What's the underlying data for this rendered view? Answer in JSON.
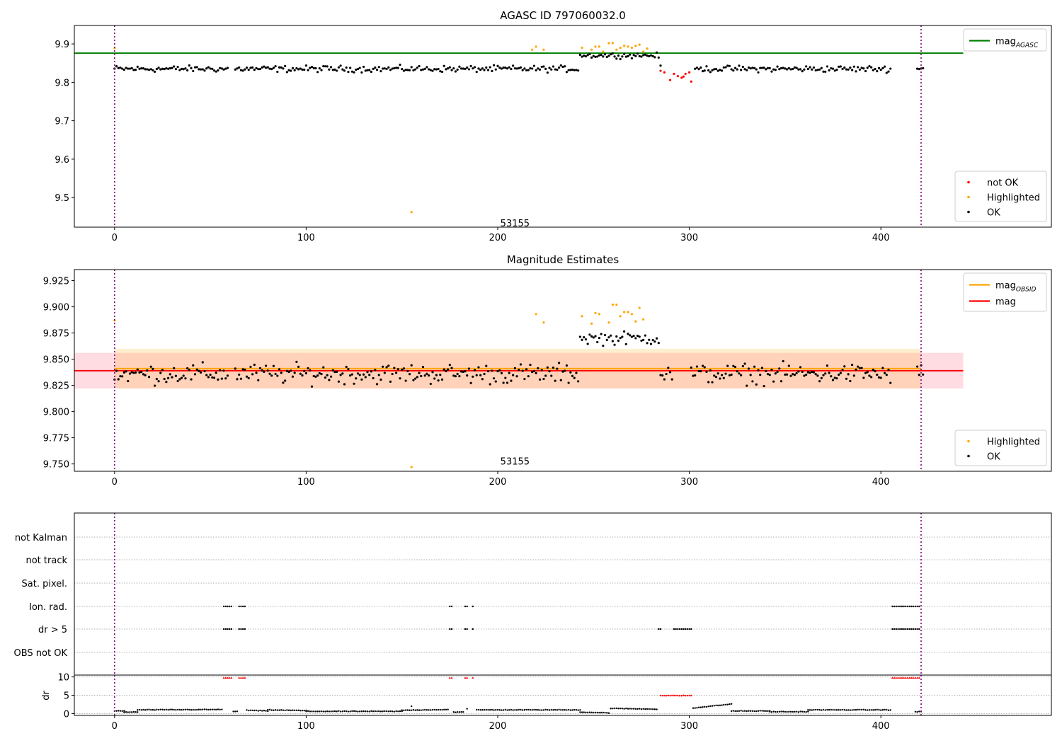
{
  "chart_data": [
    {
      "type": "scatter",
      "title": "AGASC ID 797060032.0",
      "xlim": [
        -21,
        489
      ],
      "ylim": [
        9.423,
        9.948
      ],
      "xticks": [
        0,
        100,
        200,
        300,
        400
      ],
      "yticks": [
        9.5,
        9.6,
        9.7,
        9.8,
        9.9
      ],
      "hlines": [
        {
          "name": "mag_AGASC",
          "y": 9.876,
          "x_range": [
            -21,
            443
          ],
          "color": "#008000"
        }
      ],
      "vlines": [
        0,
        421
      ],
      "annotation": {
        "text": "53155",
        "x": 209,
        "y": 9.432
      },
      "legends": {
        "upper": [
          {
            "label": "mag",
            "sub": "AGASC",
            "color": "#008000",
            "kind": "line"
          }
        ],
        "lower": [
          {
            "label": "not OK",
            "color": "#ff0000",
            "kind": "dot"
          },
          {
            "label": "Highlighted",
            "color": "#ffa500",
            "kind": "dot"
          },
          {
            "label": "OK",
            "color": "#000000",
            "kind": "dot"
          }
        ]
      },
      "series_ok": {
        "name": "OK",
        "x_range": [
          0,
          422
        ],
        "gaps": [
          [
            60,
            62
          ],
          [
            286,
            302
          ],
          [
            406,
            418
          ]
        ],
        "center": 9.835,
        "spread": 0.012
      },
      "series_ok_bump": {
        "x_range": [
          243,
          284
        ],
        "center": 9.87,
        "spread": 0.01
      },
      "series_not_ok": {
        "name": "not OK",
        "x": [
          285,
          287,
          290,
          292,
          294,
          296,
          297,
          298,
          300,
          301
        ],
        "y": [
          9.83,
          9.826,
          9.806,
          9.822,
          9.816,
          9.812,
          9.815,
          9.822,
          9.826,
          9.802
        ]
      },
      "series_highlighted": {
        "name": "Highlighted",
        "x": [
          0,
          218,
          220,
          224,
          244,
          249,
          251,
          253,
          255,
          258,
          260,
          262,
          264,
          266,
          268,
          270,
          272,
          274,
          276,
          278,
          155
        ],
        "y": [
          9.889,
          9.885,
          9.893,
          9.885,
          9.89,
          9.885,
          9.893,
          9.893,
          9.88,
          9.902,
          9.902,
          9.885,
          9.89,
          9.895,
          9.893,
          9.89,
          9.895,
          9.898,
          9.88,
          9.888,
          9.462
        ]
      }
    },
    {
      "type": "scatter",
      "title": "Magnitude Estimates",
      "xlim": [
        -21,
        489
      ],
      "ylim": [
        9.743,
        9.9355
      ],
      "xticks": [
        0,
        100,
        200,
        300,
        400
      ],
      "yticks": [
        9.75,
        9.775,
        9.8,
        9.825,
        9.85,
        9.875,
        9.9,
        9.925
      ],
      "ytick_labels": [
        "9.750",
        "9.775",
        "9.800",
        "9.825",
        "9.850",
        "9.875",
        "9.900",
        "9.925"
      ],
      "hlines": [
        {
          "name": "mag",
          "y": 9.839,
          "x_range": [
            -21,
            443
          ],
          "color": "#ff0000"
        },
        {
          "name": "mag_OBSID",
          "y": 9.841,
          "x_range": [
            0,
            421
          ],
          "color": "#ffa500"
        }
      ],
      "bands": [
        {
          "y": [
            9.822,
            9.856
          ],
          "x_range": [
            -21,
            443
          ],
          "color": "#ffc0cb",
          "opacity": 0.55
        },
        {
          "y": [
            9.822,
            9.86
          ],
          "x_range": [
            0,
            421
          ],
          "color": "#ffa500",
          "opacity": 0.18
        }
      ],
      "vlines": [
        0,
        421
      ],
      "annotation": {
        "text": "53155",
        "x": 209,
        "y": 9.752
      },
      "legends": {
        "upper": [
          {
            "label": "mag",
            "sub": "OBSID",
            "color": "#ffa500",
            "kind": "line"
          },
          {
            "label": "mag",
            "sub": "",
            "color": "#ff0000",
            "kind": "line"
          }
        ],
        "lower": [
          {
            "label": "Highlighted",
            "color": "#ffa500",
            "kind": "dot"
          },
          {
            "label": "OK",
            "color": "#000000",
            "kind": "dot"
          }
        ]
      },
      "series_ok": {
        "name": "OK",
        "x_range": [
          0,
          422
        ],
        "gaps": [
          [
            60,
            62
          ],
          [
            292,
            300
          ],
          [
            406,
            418
          ]
        ],
        "center": 9.836,
        "spread": 0.014
      },
      "series_ok_bump": {
        "x_range": [
          243,
          284
        ],
        "center": 9.87,
        "spread": 0.009
      },
      "series_highlighted": {
        "name": "Highlighted",
        "x": [
          0,
          220,
          224,
          244,
          249,
          251,
          253,
          258,
          260,
          262,
          264,
          266,
          268,
          270,
          272,
          274,
          276,
          155
        ],
        "y": [
          9.887,
          9.893,
          9.885,
          9.891,
          9.884,
          9.894,
          9.893,
          9.885,
          9.902,
          9.902,
          9.891,
          9.895,
          9.895,
          9.893,
          9.886,
          9.899,
          9.888,
          9.747
        ]
      }
    },
    {
      "type": "scatter",
      "title": "",
      "xlim": [
        -21,
        489
      ],
      "rows": [
        "not Kalman",
        "not track",
        "Sat. pixel.",
        "Ion. rad.",
        "dr > 5",
        "OBS not OK"
      ],
      "flag_ranges": {
        "Ion. rad.": [
          [
            57,
            61
          ],
          [
            65,
            68
          ],
          [
            175,
            176
          ],
          [
            183,
            184
          ],
          [
            187,
            187
          ],
          [
            406,
            420
          ]
        ],
        "dr > 5": [
          [
            57,
            61
          ],
          [
            65,
            68
          ],
          [
            175,
            176
          ],
          [
            183,
            184
          ],
          [
            187,
            187
          ],
          [
            284,
            285
          ],
          [
            292,
            301
          ],
          [
            406,
            420
          ]
        ]
      },
      "vlines": [
        0,
        421
      ]
    },
    {
      "type": "scatter",
      "title": "",
      "xlim": [
        -21,
        489
      ],
      "ylim": [
        -0.5,
        10.5
      ],
      "xticks": [
        0,
        100,
        200,
        300,
        400
      ],
      "yticks": [
        0,
        5,
        10
      ],
      "ylabel": "dr",
      "vlines": [
        0,
        421
      ],
      "red_ranges": [
        [
          57,
          61
        ],
        [
          65,
          68
        ],
        [
          175,
          176
        ],
        [
          183,
          184
        ],
        [
          187,
          187
        ],
        [
          406,
          420
        ]
      ],
      "red_mid_range": [
        285,
        301
      ],
      "black_segments": [
        {
          "x": [
            0,
            5
          ],
          "y": [
            0.7,
            0.7
          ]
        },
        {
          "x": [
            5,
            12
          ],
          "y": [
            0.4,
            0.4
          ]
        },
        {
          "x": [
            12,
            56
          ],
          "y": [
            1.0,
            1.1
          ]
        },
        {
          "x": [
            62,
            64
          ],
          "y": [
            0.6,
            0.6
          ]
        },
        {
          "x": [
            69,
            80
          ],
          "y": [
            0.9,
            0.7
          ]
        },
        {
          "x": [
            80,
            100
          ],
          "y": [
            1.0,
            0.8
          ]
        },
        {
          "x": [
            100,
            150
          ],
          "y": [
            0.6,
            0.6
          ]
        },
        {
          "x": [
            150,
            174
          ],
          "y": [
            0.9,
            1.1
          ]
        },
        {
          "x": [
            177,
            182
          ],
          "y": [
            0.4,
            0.4
          ]
        },
        {
          "x": [
            189,
            243
          ],
          "y": [
            1.0,
            1.0
          ]
        },
        {
          "x": [
            243,
            258
          ],
          "y": [
            0.4,
            0.2
          ]
        },
        {
          "x": [
            259,
            283
          ],
          "y": [
            1.4,
            1.2
          ]
        },
        {
          "x": [
            302,
            322
          ],
          "y": [
            1.5,
            2.6
          ]
        },
        {
          "x": [
            322,
            342
          ],
          "y": [
            0.7,
            0.7
          ]
        },
        {
          "x": [
            342,
            362
          ],
          "y": [
            0.5,
            0.5
          ]
        },
        {
          "x": [
            362,
            405
          ],
          "y": [
            1.0,
            1.0
          ]
        },
        {
          "x": [
            418,
            421
          ],
          "y": [
            0.5,
            0.5
          ]
        }
      ],
      "extra_points": [
        {
          "x": 155,
          "y": 2.0
        },
        {
          "x": 184,
          "y": 1.3
        }
      ]
    }
  ]
}
